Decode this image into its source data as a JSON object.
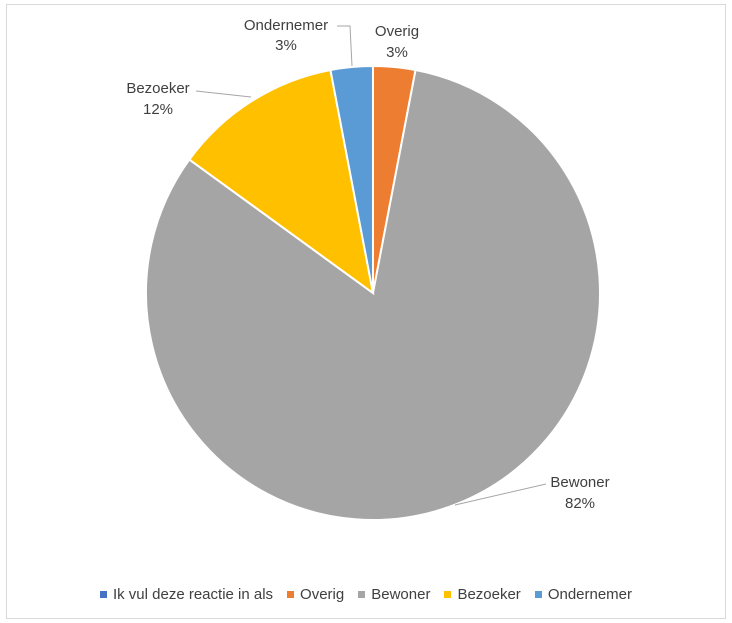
{
  "chart_data": {
    "type": "pie",
    "categories": [
      "Ik vul deze reactie in als",
      "Overig",
      "Bewoner",
      "Bezoeker",
      "Ondernemer"
    ],
    "values": [
      0,
      3,
      82,
      12,
      3
    ],
    "data_labels": [
      {
        "category": "Ondernemer",
        "name": "Ondernemer",
        "value": "3%"
      },
      {
        "category": "Overig",
        "name": "Overig",
        "value": "3%"
      },
      {
        "category": "Bezoeker",
        "name": "Bezoeker",
        "value": "12%"
      },
      {
        "category": "Bewoner",
        "name": "Bewoner",
        "value": "82%"
      }
    ],
    "colors": [
      "#4472C4",
      "#ED7D31",
      "#A5A5A5",
      "#FFC000",
      "#5B9BD5"
    ],
    "legend": {
      "position": "bottom",
      "items": [
        {
          "label": "Ik vul deze reactie in als",
          "color": "#4472C4"
        },
        {
          "label": "Overig",
          "color": "#ED7D31"
        },
        {
          "label": "Bewoner",
          "color": "#A5A5A5"
        },
        {
          "label": "Bezoeker",
          "color": "#FFC000"
        },
        {
          "label": "Ondernemer",
          "color": "#5B9BD5"
        }
      ]
    },
    "title": ""
  }
}
